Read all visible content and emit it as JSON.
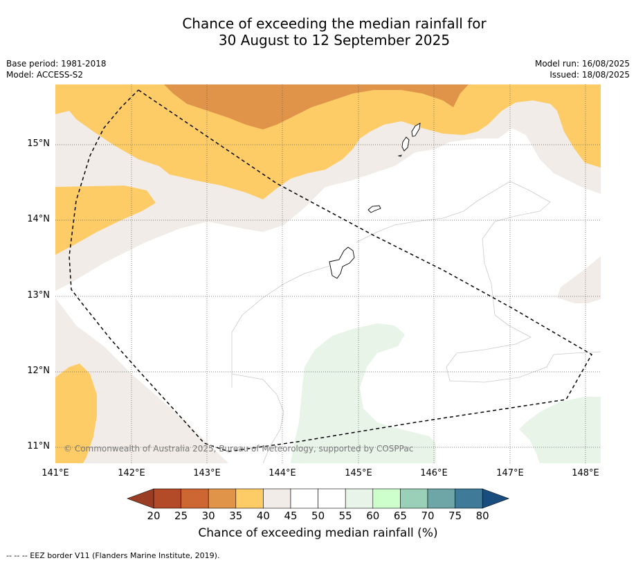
{
  "title": {
    "line1": "Chance of exceeding the median rainfall for",
    "line2": "30 August to 12 September 2025"
  },
  "meta": {
    "base_period": "Base period: 1981-2018",
    "model": "Model: ACCESS-S2",
    "model_run": "Model run: 16/08/2025",
    "issued": "Issued: 18/08/2025"
  },
  "axes": {
    "x_ticks": [
      "141°E",
      "142°E",
      "143°E",
      "144°E",
      "145°E",
      "146°E",
      "147°E",
      "148°E"
    ],
    "y_ticks": [
      "15°N",
      "14°N",
      "13°N",
      "12°N",
      "11°N"
    ]
  },
  "copyright": "© Commonwealth of Australia 2025, Bureau of Meteorology, supported by COSPPac",
  "colorbar": {
    "label": "Chance of exceeding median rainfall (%)",
    "ticks": [
      "20",
      "25",
      "30",
      "35",
      "40",
      "45",
      "50",
      "55",
      "60",
      "65",
      "70",
      "75",
      "80"
    ],
    "colors": [
      "#b34a28",
      "#cc6633",
      "#e0944a",
      "#fdcc66",
      "#f1ece7",
      "#ffffff",
      "#ffffff",
      "#e8f4e8",
      "#ccffcc",
      "#9acfb8",
      "#6ea6a8",
      "#3f7b99"
    ],
    "under_color": "#993d24",
    "over_color": "#194d80"
  },
  "footer": "--  --  -- EEZ border V11 (Flanders Marine Institute, 2019).",
  "map_colors": {
    "dark_orange": "#e0944a",
    "light_orange": "#fdcc66",
    "beige": "#f1ece7",
    "white": "#ffffff",
    "light_green": "#e8f4e8"
  }
}
